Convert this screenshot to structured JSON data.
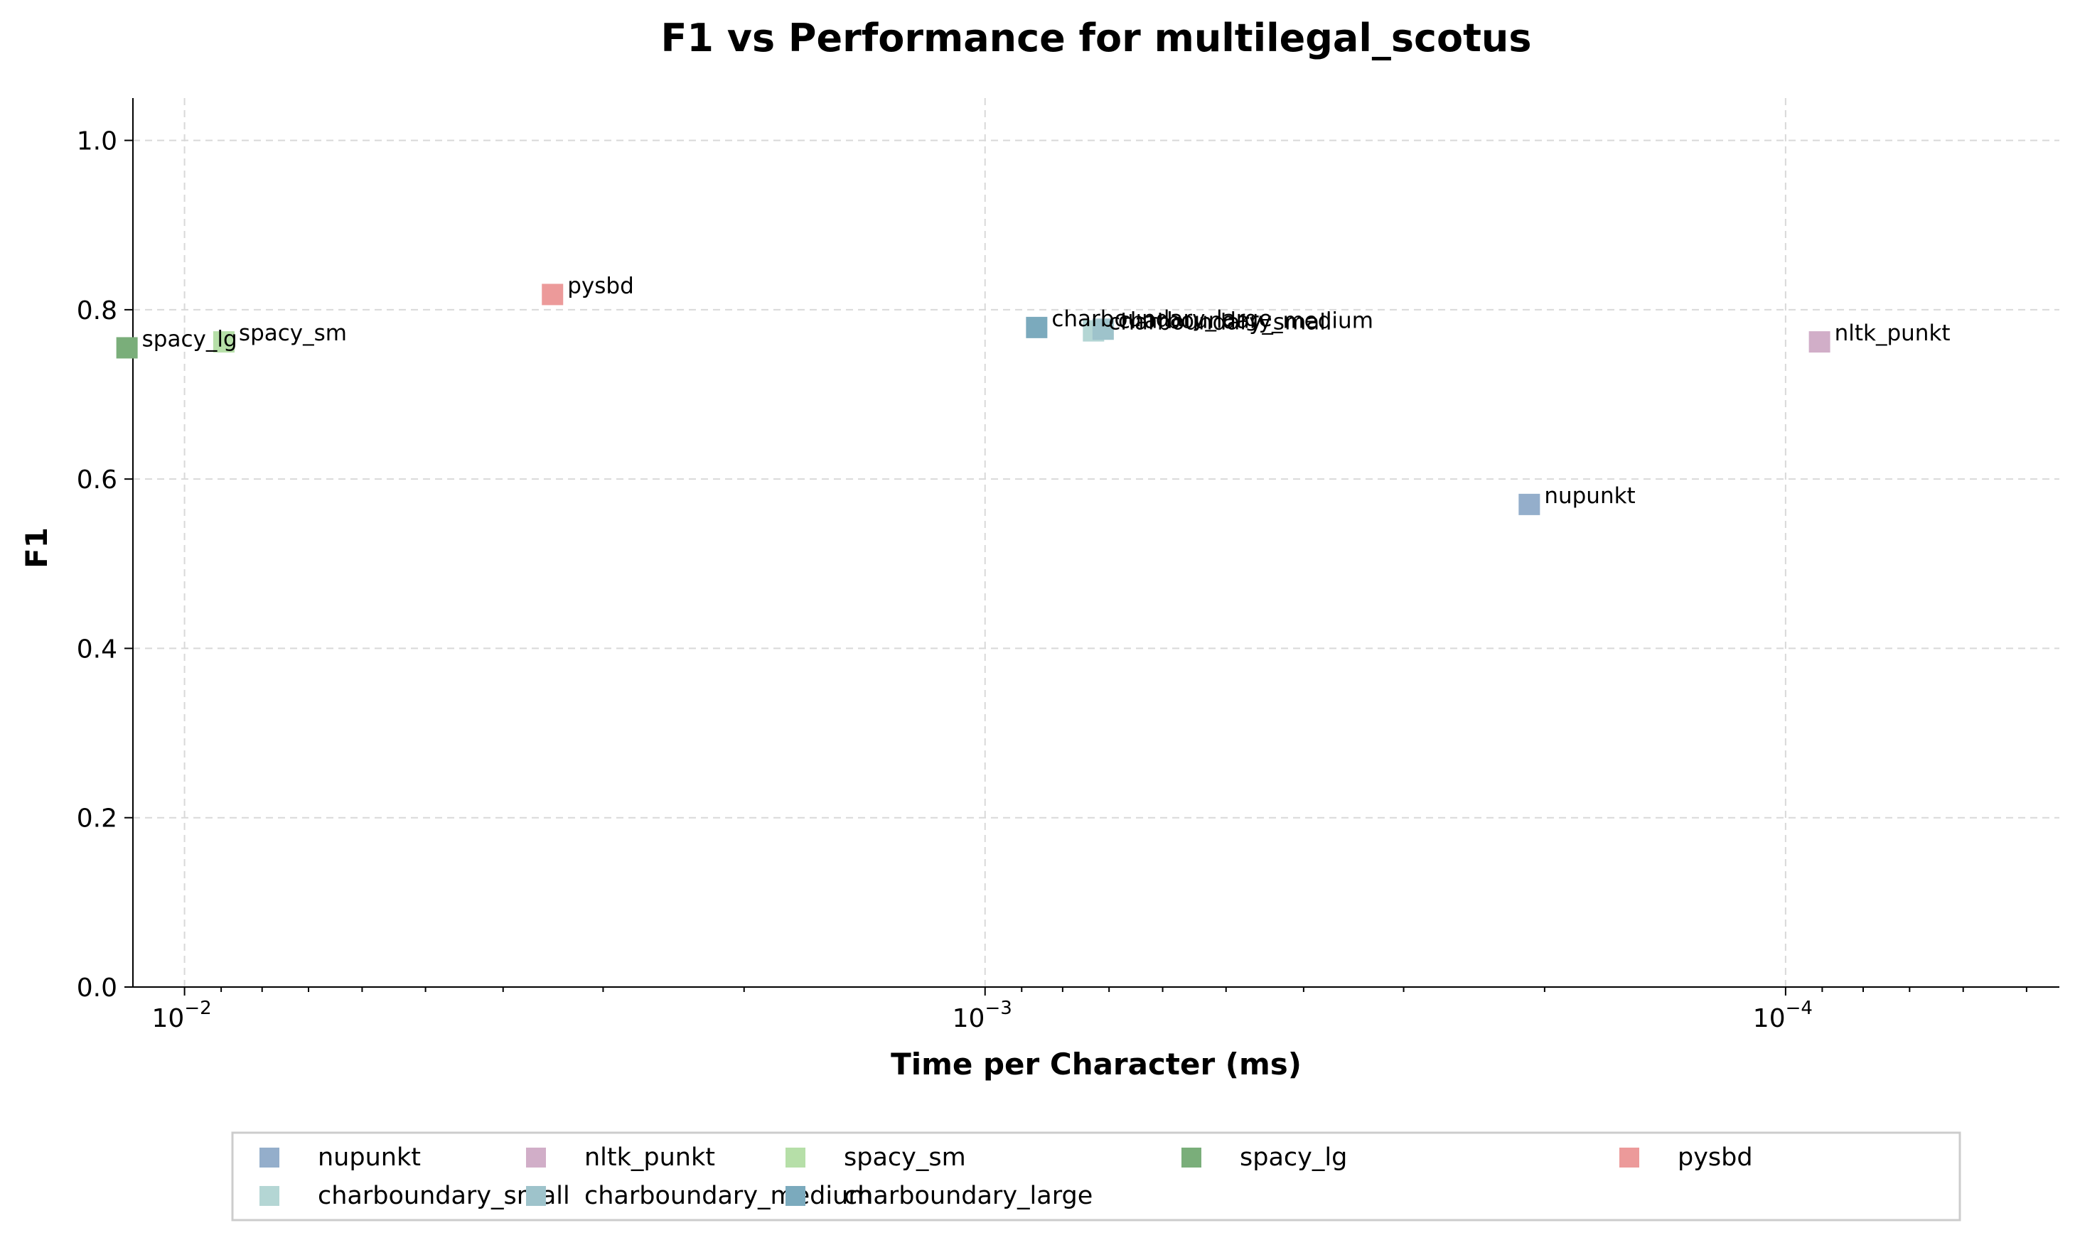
{
  "chart_data": {
    "type": "scatter",
    "title": "F1 vs Performance for multilegal_scotus",
    "xlabel": "Time per Character (ms)",
    "ylabel": "F1",
    "x_scale": "log",
    "x_reversed": true,
    "xlim": [
      0.0116,
      4.55e-05
    ],
    "ylim": [
      0,
      1.05
    ],
    "yticks": [
      0.0,
      0.2,
      0.4,
      0.6,
      0.8,
      1.0
    ],
    "ytick_labels": [
      "0.0",
      "0.2",
      "0.4",
      "0.6",
      "0.8",
      "1.0"
    ],
    "xticks": [
      0.01,
      0.001,
      0.0001
    ],
    "xtick_labels": [
      {
        "base": "10",
        "exp": "−2"
      },
      {
        "base": "10",
        "exp": "−3"
      },
      {
        "base": "10",
        "exp": "−4"
      }
    ],
    "grid": true,
    "marker": "square",
    "legend_position": "bottom-center",
    "legend_columns": 5,
    "series": [
      {
        "name": "nupunkt",
        "x": 0.000209,
        "y": 0.57,
        "color": "#94AECB"
      },
      {
        "name": "nltk_punkt",
        "x": 9.07e-05,
        "y": 0.762,
        "color": "#D1AEC8"
      },
      {
        "name": "spacy_sm",
        "x": 0.00893,
        "y": 0.762,
        "color": "#B6DFA8"
      },
      {
        "name": "spacy_lg",
        "x": 0.0118,
        "y": 0.755,
        "color": "#7AAE7A"
      },
      {
        "name": "pysbd",
        "x": 0.00347,
        "y": 0.818,
        "color": "#EC9A9A"
      },
      {
        "name": "charboundary_small",
        "x": 0.000732,
        "y": 0.775,
        "color": "#B4D6D4"
      },
      {
        "name": "charboundary_medium",
        "x": 0.000712,
        "y": 0.777,
        "color": "#9EC3CB"
      },
      {
        "name": "charboundary_large",
        "x": 0.000862,
        "y": 0.779,
        "color": "#7BAABD"
      }
    ]
  }
}
